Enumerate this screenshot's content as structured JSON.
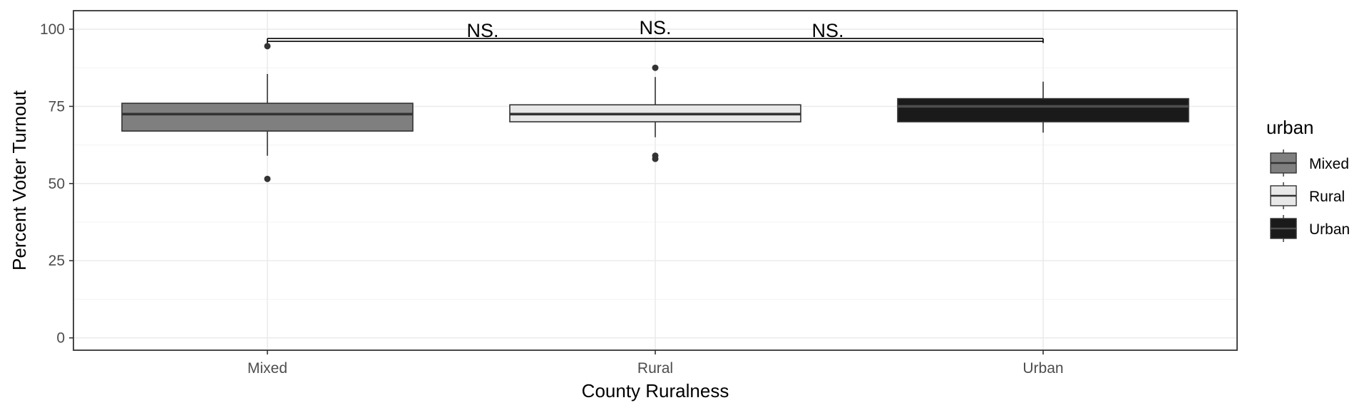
{
  "chart_data": {
    "type": "boxplot",
    "xlabel": "County Ruralness",
    "ylabel": "Percent Voter Turnout",
    "categories": [
      "Mixed",
      "Rural",
      "Urban"
    ],
    "ylim": [
      -4,
      106
    ],
    "yticks": [
      0,
      25,
      50,
      75,
      100
    ],
    "grid": true,
    "boxes": [
      {
        "category": "Mixed",
        "group": "Mixed",
        "whisker_low": 59,
        "q1": 67,
        "median": 72.5,
        "q3": 76,
        "whisker_high": 85.5,
        "outliers": [
          94.5,
          51.5
        ]
      },
      {
        "category": "Rural",
        "group": "Rural",
        "whisker_low": 65,
        "q1": 70,
        "median": 72.5,
        "q3": 75.5,
        "whisker_high": 84.5,
        "outliers": [
          87.5,
          59,
          58
        ]
      },
      {
        "category": "Urban",
        "group": "Urban",
        "whisker_low": 66.5,
        "q1": 70,
        "median": 75,
        "q3": 77.5,
        "whisker_high": 83,
        "outliers": []
      }
    ],
    "significance": {
      "y": 97,
      "from": "Mixed",
      "to": "Urban",
      "labels": [
        "NS.",
        "NS.",
        "NS."
      ]
    },
    "legend": {
      "title": "urban",
      "position": "right",
      "items": [
        {
          "label": "Mixed",
          "fill": "#7f7f7f",
          "line": "#333333"
        },
        {
          "label": "Rural",
          "fill": "#e8e8e8",
          "line": "#333333"
        },
        {
          "label": "Urban",
          "fill": "#1a1a1a",
          "line": "#4d4d4d"
        }
      ]
    },
    "colors": {
      "Mixed": {
        "fill": "#7f7f7f",
        "median": "#333333"
      },
      "Rural": {
        "fill": "#e8e8e8",
        "median": "#333333"
      },
      "Urban": {
        "fill": "#1a1a1a",
        "median": "#4d4d4d"
      },
      "outline": "#333333",
      "grid_major": "#ebebeb",
      "grid_minor": "#f5f5f5",
      "panel_border": "#333333"
    }
  }
}
